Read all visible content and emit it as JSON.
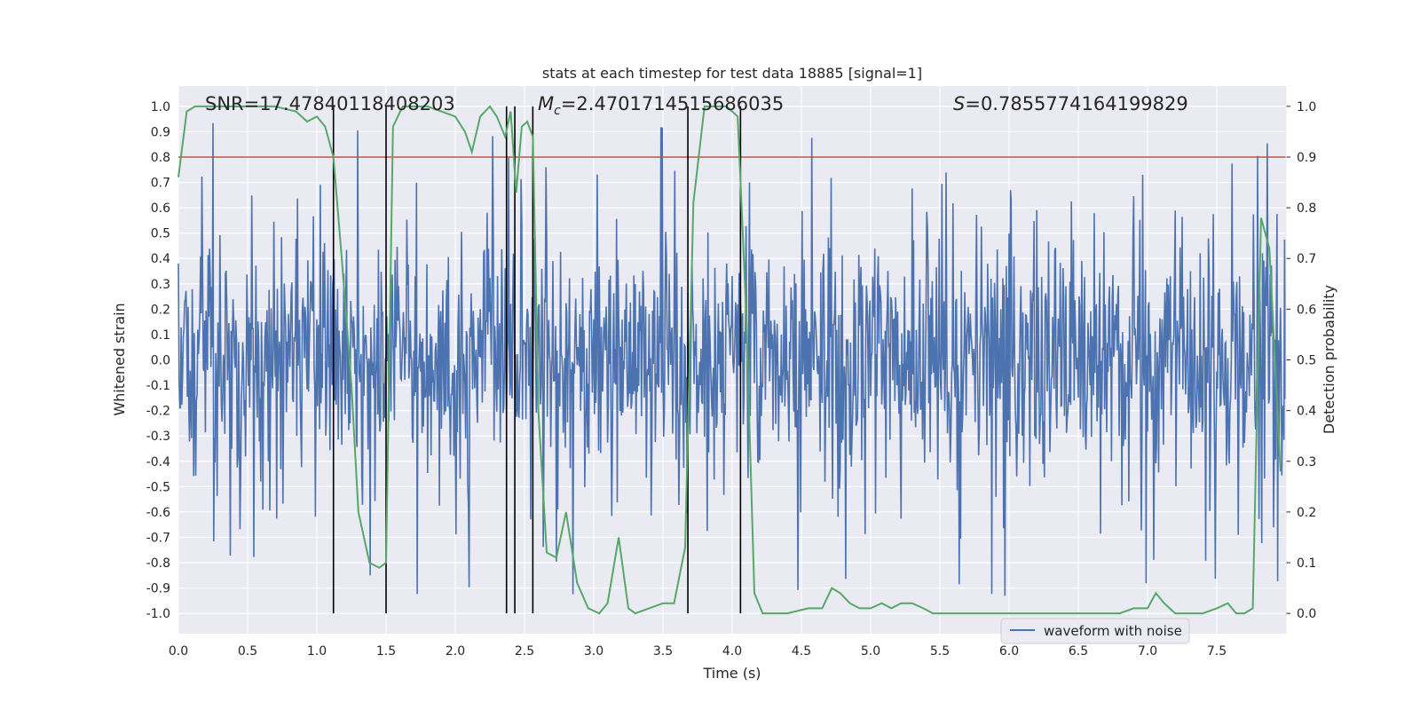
{
  "chart_data": {
    "type": "line",
    "title": "stats at each timestep for test data 18885 [signal=1]",
    "xlabel": "Time (s)",
    "ylabel": "Whitened strain",
    "y2label": "Detection probability",
    "xlim": [
      0.0,
      8.0
    ],
    "ylim": [
      -1.08,
      1.08
    ],
    "y2lim": [
      -0.04,
      1.04
    ],
    "x_ticks": [
      "0.0",
      "0.5",
      "1.0",
      "1.5",
      "2.0",
      "2.5",
      "3.0",
      "3.5",
      "4.0",
      "4.5",
      "5.0",
      "5.5",
      "6.0",
      "6.5",
      "7.0",
      "7.5"
    ],
    "y_ticks": [
      "1.0",
      "0.9",
      "0.8",
      "0.7",
      "0.6",
      "0.5",
      "0.4",
      "0.3",
      "0.2",
      "0.1",
      "0.0",
      "-0.1",
      "-0.2",
      "-0.3",
      "-0.4",
      "-0.5",
      "-0.6",
      "-0.7",
      "-0.8",
      "-0.9",
      "-1.0"
    ],
    "y2_ticks": [
      "1.0",
      "0.9",
      "0.8",
      "0.7",
      "0.6",
      "0.5",
      "0.4",
      "0.3",
      "0.2",
      "0.1",
      "0.0"
    ],
    "annotations": {
      "snr": "SNR=17.47840118408203",
      "mc_symbol": "M",
      "mc_sub": "c",
      "mc_value": "=2.4701714515686035",
      "s_symbol": "S",
      "s_value": "=0.7855774164199829"
    },
    "legend": {
      "label": "waveform with noise",
      "position": "lower-right"
    },
    "threshold": {
      "y2": 0.9,
      "color": "#c44e52"
    },
    "vlines_x": [
      1.12,
      1.5,
      2.37,
      2.43,
      2.56,
      3.68,
      4.06
    ],
    "waveform": {
      "name": "waveform with noise",
      "color": "#4c72b0",
      "sample_count": 1600,
      "duration": 8.0,
      "noise_envelope": 0.42,
      "peak_abs": 1.0
    },
    "series": [
      {
        "name": "Detection probability",
        "color": "#55a868",
        "x": [
          0.0,
          0.06,
          0.12,
          0.25,
          0.4,
          0.55,
          0.7,
          0.85,
          0.93,
          1.0,
          1.06,
          1.12,
          1.18,
          1.25,
          1.3,
          1.38,
          1.45,
          1.5,
          1.55,
          1.62,
          1.7,
          1.8,
          1.9,
          2.0,
          2.07,
          2.12,
          2.18,
          2.25,
          2.3,
          2.36,
          2.4,
          2.44,
          2.48,
          2.52,
          2.56,
          2.6,
          2.66,
          2.73,
          2.8,
          2.88,
          2.96,
          3.04,
          3.1,
          3.18,
          3.25,
          3.3,
          3.4,
          3.5,
          3.58,
          3.66,
          3.72,
          3.8,
          3.88,
          3.96,
          4.04,
          4.1,
          4.16,
          4.22,
          4.3,
          4.4,
          4.55,
          4.65,
          4.72,
          4.78,
          4.85,
          4.92,
          5.0,
          5.08,
          5.15,
          5.22,
          5.3,
          5.38,
          5.45,
          5.5,
          5.6,
          5.7,
          5.8,
          5.9,
          6.0,
          6.2,
          6.4,
          6.6,
          6.8,
          6.9,
          7.0,
          7.06,
          7.12,
          7.2,
          7.3,
          7.4,
          7.5,
          7.58,
          7.64,
          7.7,
          7.76,
          7.82,
          7.88,
          7.96
        ],
        "values": [
          0.86,
          0.99,
          1.0,
          1.0,
          1.0,
          1.0,
          1.0,
          0.99,
          0.97,
          0.98,
          0.96,
          0.9,
          0.7,
          0.45,
          0.2,
          0.1,
          0.09,
          0.1,
          0.96,
          1.0,
          1.0,
          1.0,
          0.99,
          0.98,
          0.95,
          0.91,
          0.98,
          1.0,
          0.98,
          0.94,
          0.99,
          0.83,
          0.96,
          0.97,
          0.94,
          0.4,
          0.12,
          0.11,
          0.2,
          0.06,
          0.01,
          0.0,
          0.02,
          0.15,
          0.01,
          0.0,
          0.01,
          0.02,
          0.02,
          0.13,
          0.81,
          1.0,
          1.0,
          1.0,
          0.98,
          0.6,
          0.04,
          0.0,
          0.0,
          0.0,
          0.01,
          0.01,
          0.05,
          0.04,
          0.02,
          0.01,
          0.01,
          0.02,
          0.01,
          0.02,
          0.02,
          0.01,
          0.0,
          0.0,
          0.0,
          0.0,
          0.0,
          0.0,
          0.0,
          0.0,
          0.0,
          0.0,
          0.0,
          0.01,
          0.01,
          0.04,
          0.02,
          0.0,
          0.0,
          0.0,
          0.01,
          0.02,
          0.0,
          0.0,
          0.01,
          0.78,
          0.72,
          0.28
        ]
      }
    ],
    "grid": true,
    "colors": {
      "axes_bg": "#eaeaf2",
      "grid": "#ffffff",
      "vline": "#000000"
    }
  }
}
